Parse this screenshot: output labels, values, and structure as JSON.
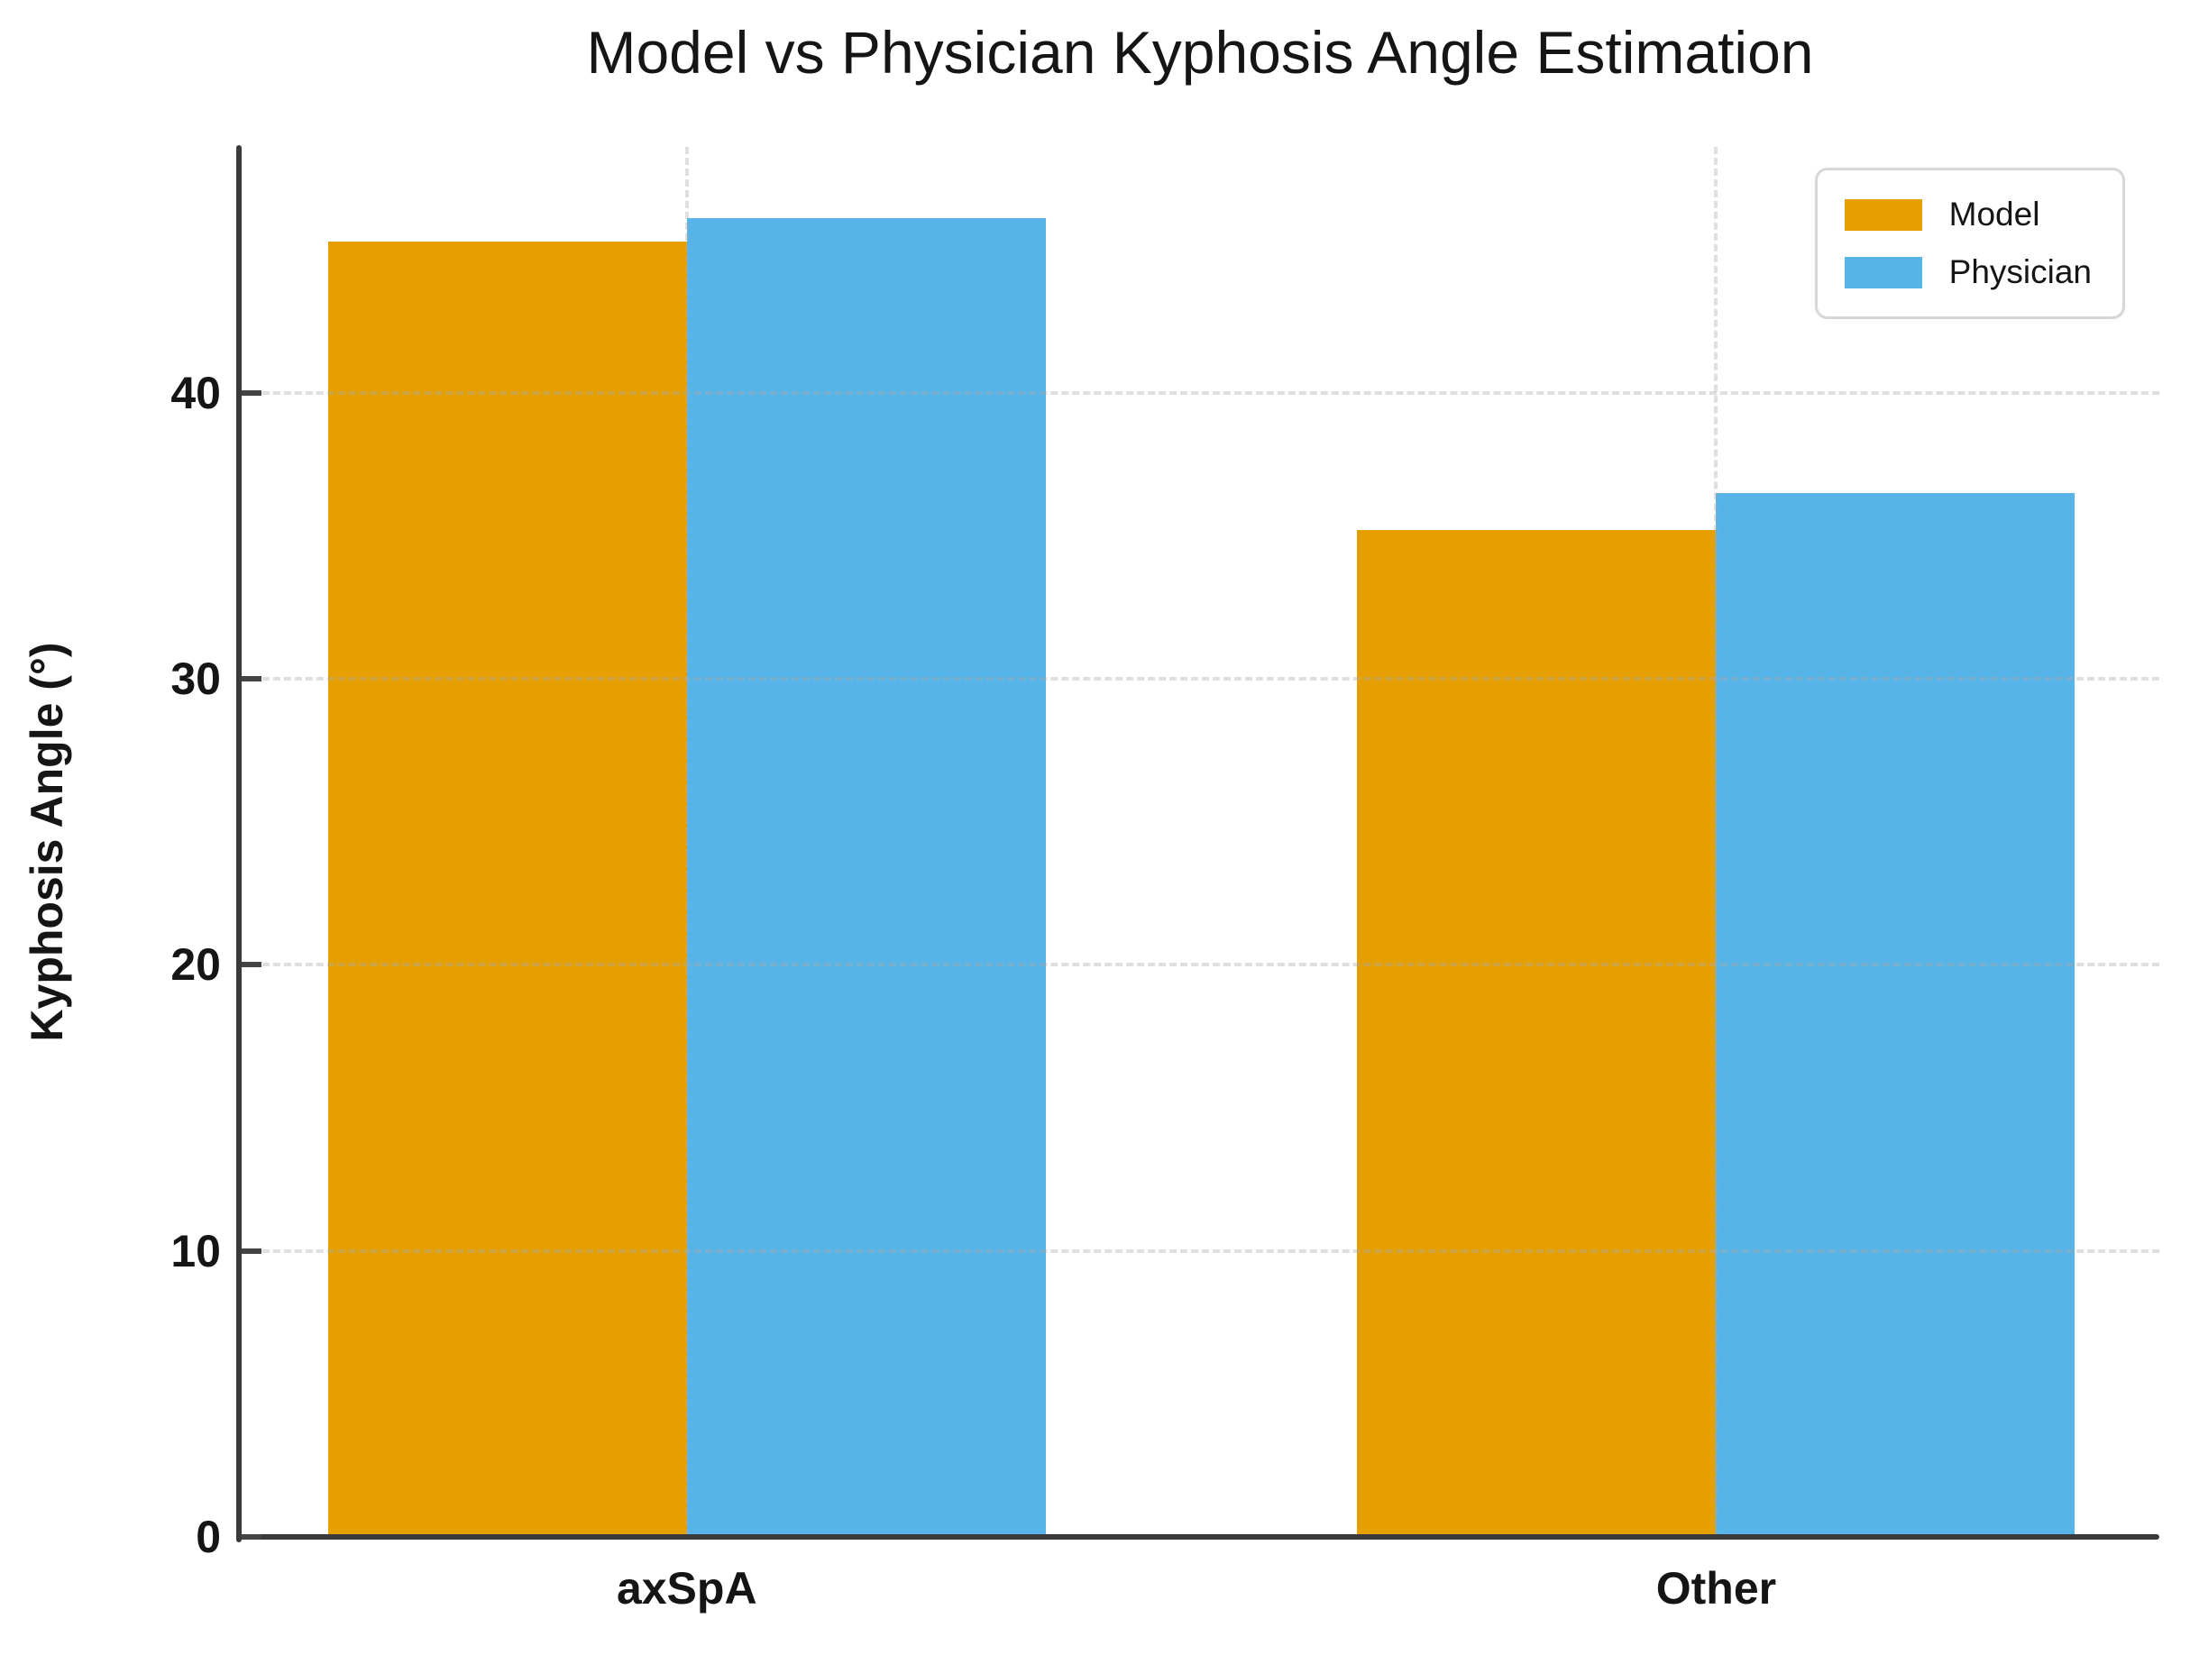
{
  "chart_data": {
    "type": "bar",
    "title": "Model vs Physician Kyphosis Angle Estimation",
    "xlabel": "",
    "ylabel": "Kyphosis Angle (°)",
    "categories": [
      "axSpA",
      "Other"
    ],
    "series": [
      {
        "name": "Model",
        "color": "#E69F00",
        "values": [
          45.3,
          35.2
        ]
      },
      {
        "name": "Physician",
        "color": "#56B4E9",
        "values": [
          46.1,
          36.5
        ]
      }
    ],
    "yticks": [
      0,
      10,
      20,
      30,
      40
    ],
    "ylim": [
      0,
      48.6
    ],
    "grid": "dashed",
    "legend_position": "top-right"
  },
  "colors": {
    "background": "#ffffff",
    "spine": "#3a3a3a",
    "tick": "#444444",
    "text": "#151515"
  }
}
